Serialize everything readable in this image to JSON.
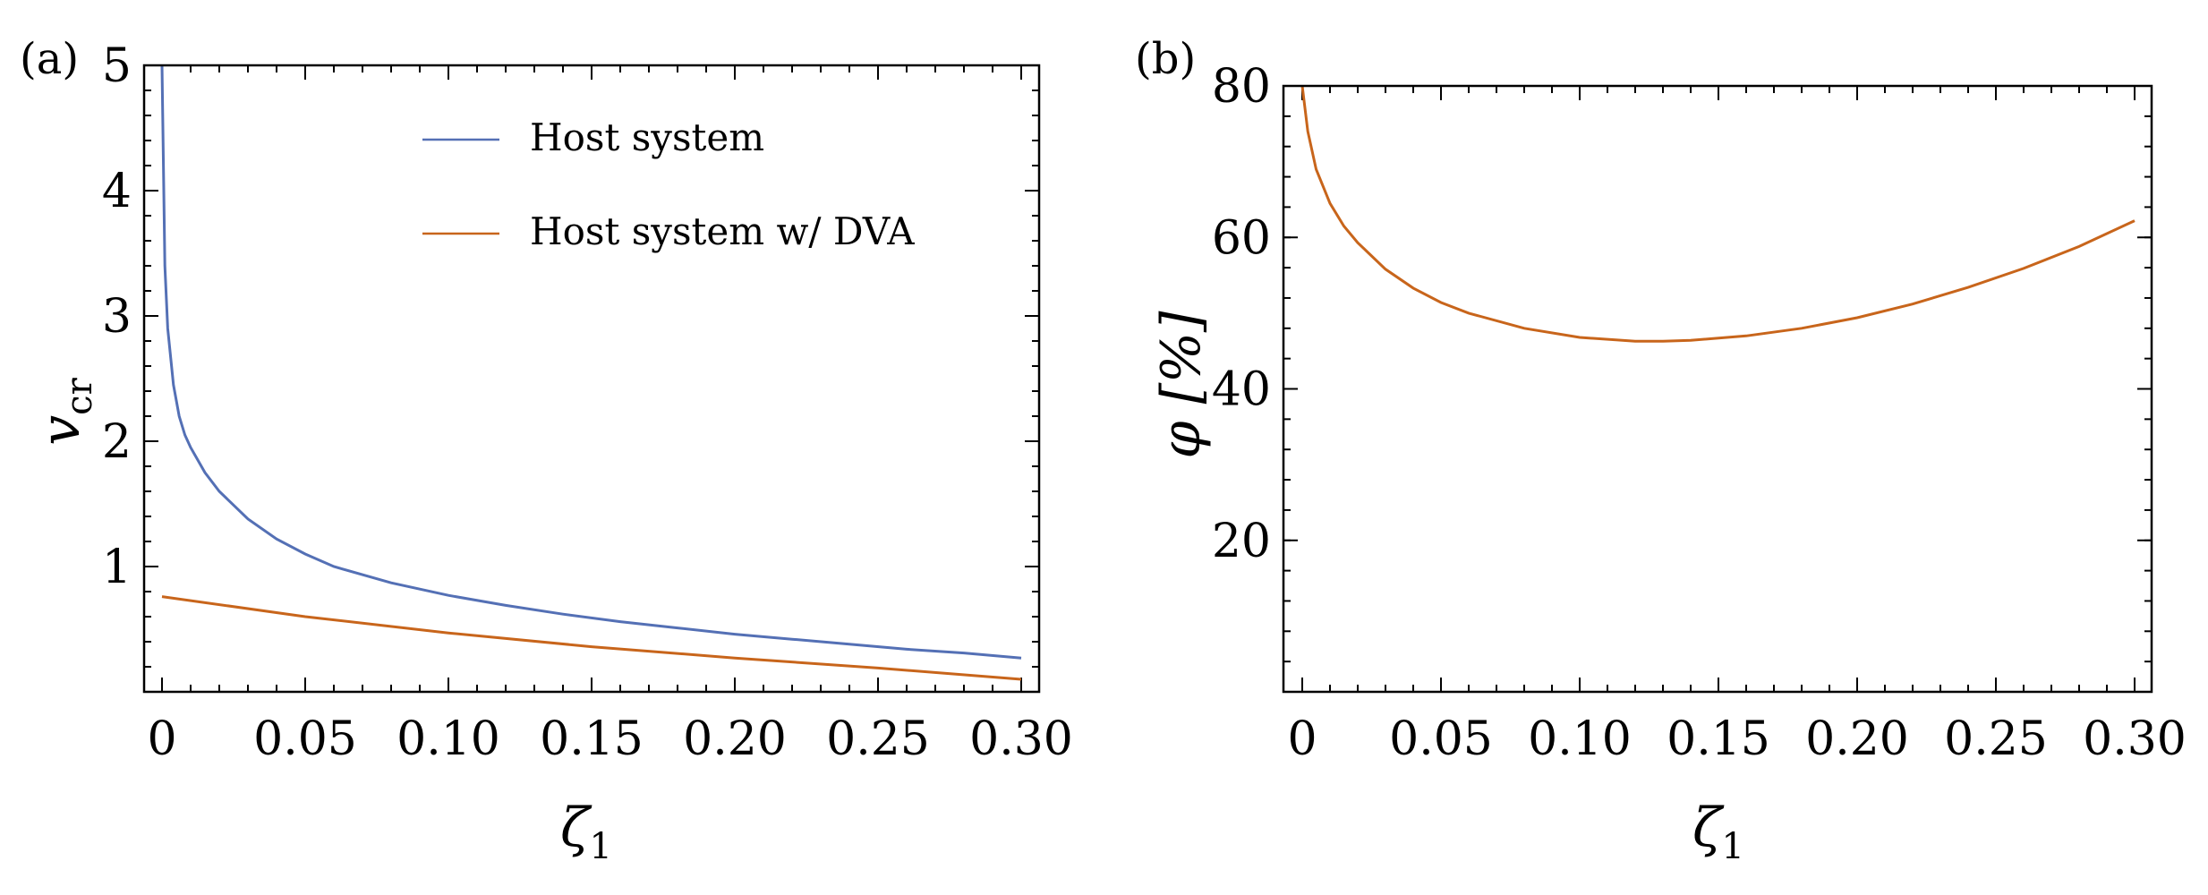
{
  "chart_data": [
    {
      "type": "line",
      "panel_label": "(a)",
      "xlabel": "ζ",
      "xlabel_sub": "1",
      "ylabel": "v",
      "ylabel_sub": "cr",
      "xlim": [
        0,
        0.3
      ],
      "ylim": [
        0,
        5
      ],
      "x_ticks": [
        "0",
        "0.05",
        "0.10",
        "0.15",
        "0.20",
        "0.25",
        "0.30"
      ],
      "x_tick_values": [
        0,
        0.05,
        0.1,
        0.15,
        0.2,
        0.25,
        0.3
      ],
      "y_ticks": [
        "1",
        "2",
        "3",
        "4",
        "5"
      ],
      "y_tick_values": [
        1,
        2,
        3,
        4,
        5
      ],
      "legend_position": "top-center",
      "series": [
        {
          "name": "Host system",
          "color": "#5470b5",
          "x": [
            0.0,
            0.001,
            0.002,
            0.004,
            0.006,
            0.008,
            0.01,
            0.015,
            0.02,
            0.03,
            0.04,
            0.05,
            0.06,
            0.08,
            0.1,
            0.12,
            0.14,
            0.16,
            0.18,
            0.2,
            0.22,
            0.24,
            0.26,
            0.28,
            0.3
          ],
          "y": [
            5.0,
            3.4,
            2.9,
            2.45,
            2.2,
            2.05,
            1.95,
            1.75,
            1.6,
            1.38,
            1.22,
            1.1,
            1.0,
            0.87,
            0.77,
            0.69,
            0.62,
            0.56,
            0.51,
            0.46,
            0.42,
            0.38,
            0.34,
            0.31,
            0.27
          ]
        },
        {
          "name": "Host system w/ DVA",
          "color": "#c8651b",
          "x": [
            0.0,
            0.05,
            0.1,
            0.15,
            0.2,
            0.25,
            0.3
          ],
          "y": [
            0.76,
            0.6,
            0.47,
            0.36,
            0.27,
            0.19,
            0.1
          ]
        }
      ]
    },
    {
      "type": "line",
      "panel_label": "(b)",
      "xlabel": "ζ",
      "xlabel_sub": "1",
      "ylabel": "φ [%]",
      "xlim": [
        0,
        0.3
      ],
      "ylim": [
        0,
        80
      ],
      "x_ticks": [
        "0",
        "0.05",
        "0.10",
        "0.15",
        "0.20",
        "0.25",
        "0.30"
      ],
      "x_tick_values": [
        0,
        0.05,
        0.1,
        0.15,
        0.2,
        0.25,
        0.3
      ],
      "y_ticks": [
        "20",
        "40",
        "60",
        "80"
      ],
      "y_tick_values": [
        20,
        40,
        60,
        80
      ],
      "series": [
        {
          "name": "φ",
          "color": "#c8651b",
          "x": [
            0.0,
            0.002,
            0.005,
            0.01,
            0.015,
            0.02,
            0.03,
            0.04,
            0.05,
            0.06,
            0.08,
            0.1,
            0.12,
            0.13,
            0.14,
            0.16,
            0.18,
            0.2,
            0.22,
            0.24,
            0.26,
            0.28,
            0.3
          ],
          "y": [
            80.0,
            74.0,
            69.0,
            64.5,
            61.5,
            59.3,
            55.8,
            53.3,
            51.4,
            50.0,
            48.0,
            46.8,
            46.3,
            46.3,
            46.4,
            47.0,
            48.0,
            49.4,
            51.2,
            53.4,
            55.9,
            58.8,
            62.2
          ]
        }
      ]
    }
  ]
}
